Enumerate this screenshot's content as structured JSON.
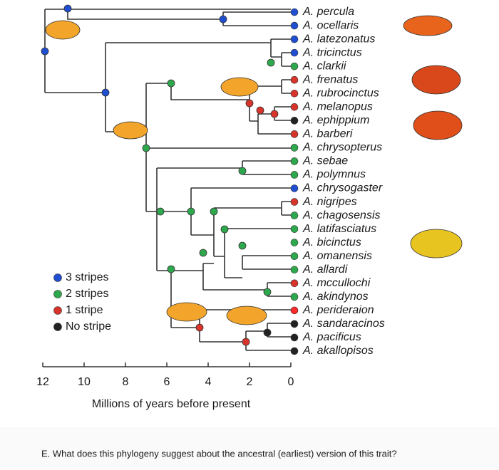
{
  "tips": [
    {
      "label": "A. percula",
      "color": "#1f4fd0"
    },
    {
      "label": "A. ocellaris",
      "color": "#1f4fd0"
    },
    {
      "label": "A. latezonatus",
      "color": "#1f4fd0"
    },
    {
      "label": "A. tricinctus",
      "color": "#1f4fd0"
    },
    {
      "label": "A. clarkii",
      "color": "#2ea84c"
    },
    {
      "label": "A. frenatus",
      "color": "#d9342b"
    },
    {
      "label": "A. rubrocinctus",
      "color": "#d9342b"
    },
    {
      "label": "A. melanopus",
      "color": "#d9342b"
    },
    {
      "label": "A. ephippium",
      "color": "#222222"
    },
    {
      "label": "A. barberi",
      "color": "#d9342b"
    },
    {
      "label": "A. chrysopterus",
      "color": "#2ea84c"
    },
    {
      "label": "A. sebae",
      "color": "#2ea84c"
    },
    {
      "label": "A. polymnus",
      "color": "#2ea84c"
    },
    {
      "label": "A. chrysogaster",
      "color": "#1f4fd0"
    },
    {
      "label": "A. nigripes",
      "color": "#d9342b"
    },
    {
      "label": "A. chagosensis",
      "color": "#2ea84c"
    },
    {
      "label": "A. latifasciatus",
      "color": "#2ea84c"
    },
    {
      "label": "A. bicinctus",
      "color": "#2ea84c"
    },
    {
      "label": "A. omanensis",
      "color": "#2ea84c"
    },
    {
      "label": "A. allardi",
      "color": "#2ea84c"
    },
    {
      "label": "A. mccullochi",
      "color": "#d9342b"
    },
    {
      "label": "A. akindynos",
      "color": "#2ea84c"
    },
    {
      "label": "A. perideraion",
      "color": "#ff2a2a"
    },
    {
      "label": "A. sandaracinos",
      "color": "#222222"
    },
    {
      "label": "A. pacificus",
      "color": "#222222"
    },
    {
      "label": "A. akallopisos",
      "color": "#222222"
    }
  ],
  "legend": [
    {
      "label": "3 stripes",
      "color": "#1f4fd0"
    },
    {
      "label": "2 stripes",
      "color": "#2ea84c"
    },
    {
      "label": "1 stripe",
      "color": "#d9342b"
    },
    {
      "label": "No stripe",
      "color": "#222222"
    }
  ],
  "axis": {
    "ticks": [
      12,
      10,
      8,
      6,
      4,
      2,
      0
    ],
    "label": "Millions of years before present"
  },
  "question": "E. What does this phylogeny suggest about the ancestral (earliest) version of this trait?"
}
